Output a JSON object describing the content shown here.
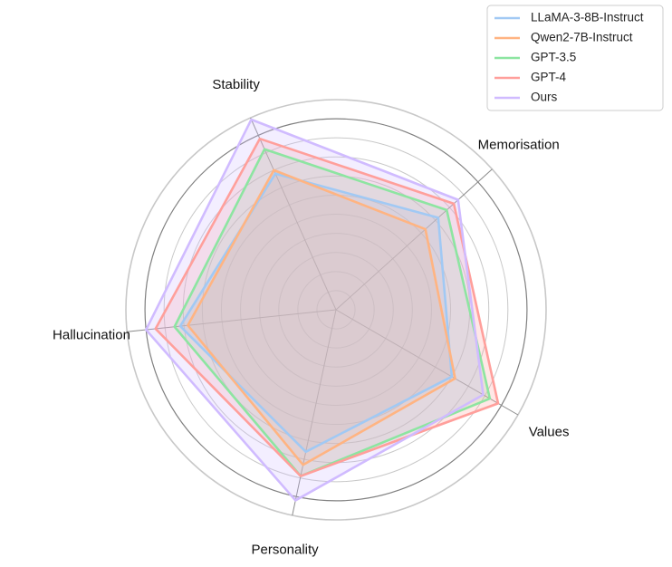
{
  "chart_data": {
    "type": "radar",
    "axes": [
      "Memorisation",
      "Values",
      "Personality",
      "Hallucination",
      "Stability"
    ],
    "rlim": [
      0,
      1.1
    ],
    "ring_levels": [
      0.1,
      0.2,
      0.3,
      0.4,
      0.5,
      0.6,
      0.7,
      0.8,
      0.9,
      1.0,
      1.1
    ],
    "emphasized_ring": 1.0,
    "grid": true,
    "legend_position": "top-right",
    "series": [
      {
        "name": "LLaMA-3-8B-Instruct",
        "color": "#a1c9f4",
        "values": [
          0.72,
          0.7,
          0.76,
          0.82,
          0.78
        ]
      },
      {
        "name": "Qwen2-7B-Instruct",
        "color": "#ffb482",
        "values": [
          0.63,
          0.72,
          0.83,
          0.78,
          0.8
        ]
      },
      {
        "name": "GPT-3.5",
        "color": "#8de5a1",
        "values": [
          0.78,
          0.93,
          0.89,
          0.85,
          0.92
        ]
      },
      {
        "name": "GPT-4",
        "color": "#ff9f9b",
        "values": [
          0.83,
          0.98,
          0.89,
          0.95,
          0.98
        ]
      },
      {
        "name": "Ours",
        "color": "#d0bbff",
        "values": [
          0.86,
          0.89,
          1.02,
          1.0,
          1.09
        ]
      }
    ]
  }
}
